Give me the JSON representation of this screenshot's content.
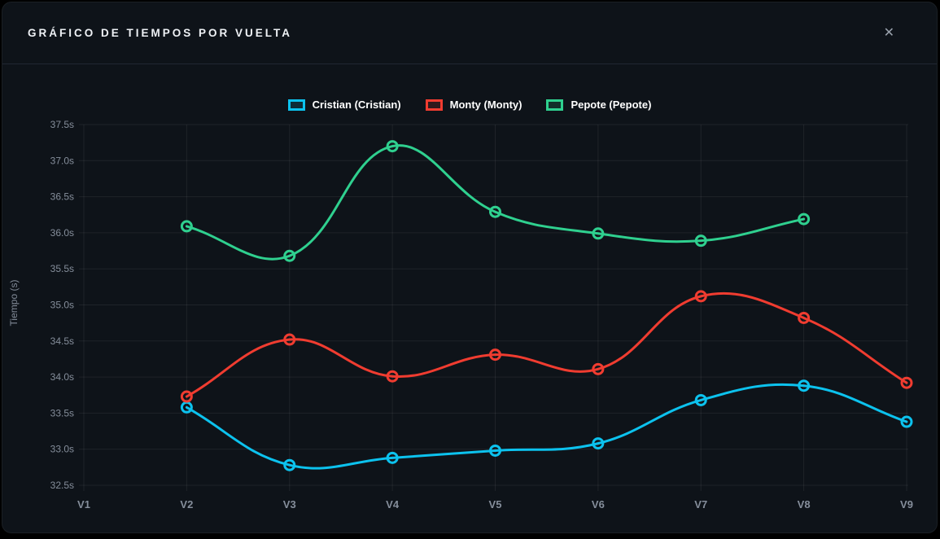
{
  "window": {
    "title": "GRÁFICO DE TIEMPOS POR VUELTA",
    "close_icon": "✕"
  },
  "colors": {
    "page_bg": "#000000",
    "card_bg": "#0e1319",
    "header_border": "#212733",
    "grid": "rgba(255,255,255,0.07)",
    "tick_text": "#858e9b",
    "title_text": "#eef1f5"
  },
  "chart_data": {
    "type": "line",
    "title": "",
    "xlabel": "",
    "ylabel": "Tiempo (s)",
    "x_labels": [
      "V1",
      "V2",
      "V3",
      "V4",
      "V5",
      "V6",
      "V7",
      "V8",
      "V9"
    ],
    "y_ticks": [
      "37.5s",
      "37.0s",
      "36.5s",
      "36.0s",
      "35.5s",
      "35.0s",
      "34.5s",
      "34.0s",
      "33.5s",
      "33.0s",
      "32.5s"
    ],
    "ylim": [
      32.5,
      37.5
    ],
    "y_step": 0.5,
    "grid": true,
    "legend_position": "top",
    "line_tension": 0.4,
    "series": [
      {
        "name": "Cristian (Cristian)",
        "color": "#0cc2ee",
        "values": [
          null,
          33.58,
          32.78,
          32.88,
          32.98,
          33.08,
          33.68,
          33.88,
          33.38
        ]
      },
      {
        "name": "Monty (Monty)",
        "color": "#f03c30",
        "values": [
          null,
          33.73,
          34.52,
          34.01,
          34.31,
          34.11,
          35.12,
          34.82,
          33.92
        ]
      },
      {
        "name": "Pepote (Pepote)",
        "color": "#2fd08f",
        "values": [
          null,
          36.09,
          35.68,
          37.2,
          36.29,
          35.99,
          35.89,
          36.19,
          null
        ]
      }
    ]
  }
}
